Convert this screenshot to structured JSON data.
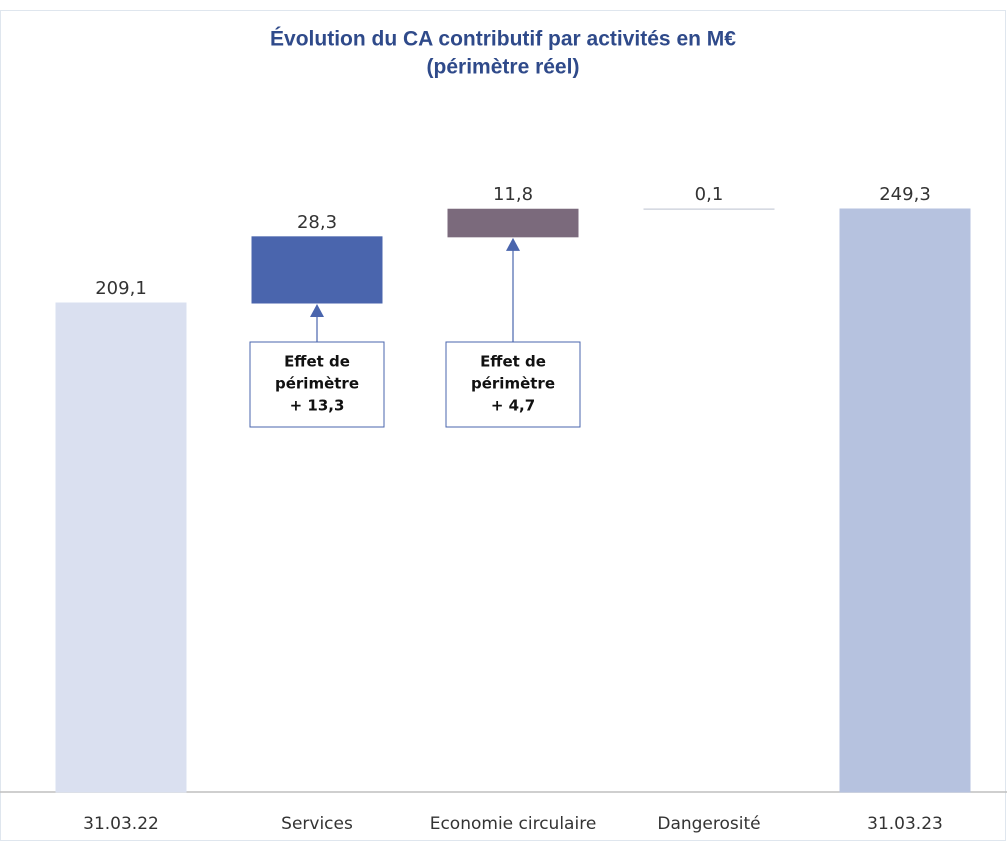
{
  "chart_data": {
    "type": "waterfall",
    "title": "Évolution du CA contributif par activités en M€",
    "subtitle": "(périmètre réel)",
    "categories": [
      "31.03.22",
      "Services",
      "Economie circulaire",
      "Dangerosité",
      "31.03.23"
    ],
    "values": [
      209.1,
      28.3,
      11.8,
      0.1,
      249.3
    ],
    "value_labels": [
      "209,1",
      "28,3",
      "11,8",
      "0,1",
      "249,3"
    ],
    "colors": [
      "#dae0f0",
      "#4a65ad",
      "#7b6a7c",
      "#c8cdd8",
      "#b6c2df"
    ],
    "annotations": [
      {
        "category": "Services",
        "lines": [
          "Effet de",
          "périmètre",
          "+ 13,3"
        ]
      },
      {
        "category": "Economie circulaire",
        "lines": [
          "Effet de",
          "périmètre",
          "+ 4,7"
        ]
      }
    ]
  }
}
